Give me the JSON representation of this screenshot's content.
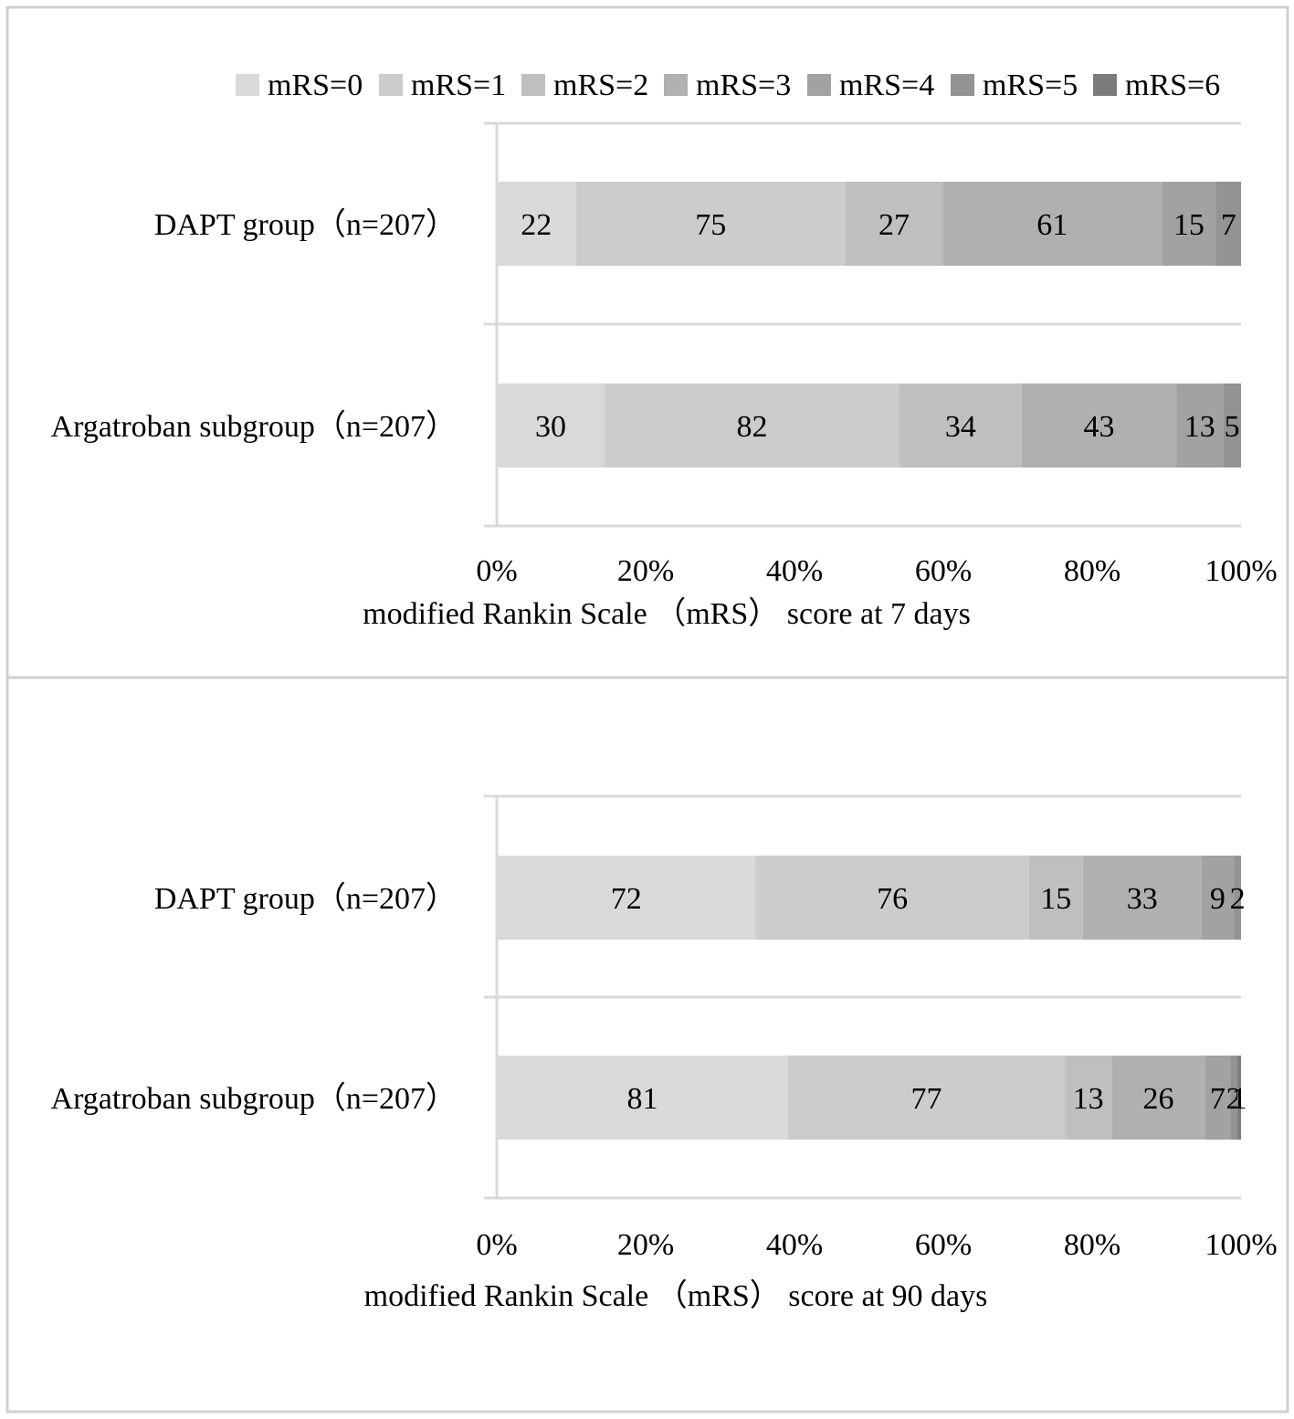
{
  "legend_labels": [
    "mRS=0",
    "mRS=1",
    "mRS=2",
    "mRS=3",
    "mRS=4",
    "mRS=5",
    "mRS=6"
  ],
  "colors": [
    "#d9d9d9",
    "#cccccc",
    "#bfbfbf",
    "#b0b0b0",
    "#a2a2a2",
    "#939393",
    "#7b7b7b"
  ],
  "border_color": "#d0d0d0",
  "gridline_color": "#d9d9d9",
  "chart_data": [
    {
      "type": "bar",
      "orientation": "horizontal",
      "stacked": "percent",
      "xlabel": "modified Rankin Scale （mRS） score at 7 days",
      "ticks": [
        "0%",
        "20%",
        "40%",
        "60%",
        "80%",
        "100%"
      ],
      "xlim": [
        0,
        100
      ],
      "legend_position": "top",
      "categories": [
        "DAPT group（n=207）",
        "Argatroban subgroup（n=207）"
      ],
      "series": [
        {
          "name": "mRS=0",
          "values": [
            22,
            30
          ]
        },
        {
          "name": "mRS=1",
          "values": [
            75,
            82
          ]
        },
        {
          "name": "mRS=2",
          "values": [
            27,
            34
          ]
        },
        {
          "name": "mRS=3",
          "values": [
            61,
            43
          ]
        },
        {
          "name": "mRS=4",
          "values": [
            15,
            13
          ]
        },
        {
          "name": "mRS=5",
          "values": [
            7,
            5
          ]
        },
        {
          "name": "mRS=6",
          "values": [
            0,
            0
          ]
        }
      ]
    },
    {
      "type": "bar",
      "orientation": "horizontal",
      "stacked": "percent",
      "xlabel": "modified Rankin Scale （mRS） score at 90 days",
      "ticks": [
        "0%",
        "20%",
        "40%",
        "60%",
        "80%",
        "100%"
      ],
      "xlim": [
        0,
        100
      ],
      "categories": [
        "DAPT group（n=207）",
        "Argatroban subgroup（n=207）"
      ],
      "series": [
        {
          "name": "mRS=0",
          "values": [
            72,
            81
          ]
        },
        {
          "name": "mRS=1",
          "values": [
            76,
            77
          ]
        },
        {
          "name": "mRS=2",
          "values": [
            15,
            13
          ]
        },
        {
          "name": "mRS=3",
          "values": [
            33,
            26
          ]
        },
        {
          "name": "mRS=4",
          "values": [
            9,
            7
          ]
        },
        {
          "name": "mRS=5",
          "values": [
            2,
            2
          ]
        },
        {
          "name": "mRS=6",
          "values": [
            0,
            1
          ]
        }
      ]
    }
  ]
}
